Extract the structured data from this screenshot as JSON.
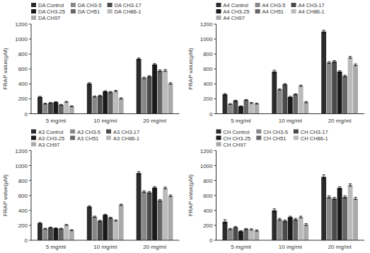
{
  "chart_data": [
    {
      "type": "bar",
      "ylabel": "FRAP value(μM)",
      "categories": [
        "5 mg/ml",
        "10 mg/ml",
        "20 mg/ml"
      ],
      "ylim": [
        0,
        1200
      ],
      "yticks": [
        0,
        200,
        400,
        600,
        800,
        1000,
        1200
      ],
      "grid": false,
      "legend": "upper left",
      "series": [
        {
          "name": "DA Control",
          "color": "#2b2b2b",
          "values": [
            225,
            405,
            735
          ],
          "errors": [
            8,
            10,
            12
          ]
        },
        {
          "name": "DA CH3-5",
          "color": "#888888",
          "values": [
            135,
            230,
            480
          ],
          "errors": [
            6,
            8,
            10
          ]
        },
        {
          "name": "DA CH3-17",
          "color": "#4a4a4a",
          "values": [
            145,
            240,
            500
          ],
          "errors": [
            6,
            8,
            10
          ]
        },
        {
          "name": "DA CH3-25",
          "color": "#1a1a1a",
          "values": [
            155,
            300,
            660
          ],
          "errors": [
            6,
            8,
            12
          ]
        },
        {
          "name": "DA CH51",
          "color": "#666666",
          "values": [
            120,
            290,
            575
          ],
          "errors": [
            6,
            8,
            12
          ]
        },
        {
          "name": "DA CH86-1",
          "color": "#bbbbbb",
          "values": [
            160,
            305,
            580
          ],
          "errors": [
            6,
            8,
            12
          ]
        },
        {
          "name": "DA CH97",
          "color": "#aaaaaa",
          "values": [
            100,
            205,
            405
          ],
          "errors": [
            6,
            8,
            10
          ]
        }
      ]
    },
    {
      "type": "bar",
      "ylabel": "FRAP value(μM)",
      "categories": [
        "5 mg/ml",
        "10 mg/ml",
        "20 mg/ml"
      ],
      "ylim": [
        0,
        1200
      ],
      "yticks": [
        0,
        200,
        400,
        600,
        800,
        1000,
        1200
      ],
      "grid": false,
      "legend": "upper left",
      "series": [
        {
          "name": "A4 Control",
          "color": "#2b2b2b",
          "values": [
            260,
            565,
            1100
          ],
          "errors": [
            10,
            18,
            18
          ]
        },
        {
          "name": "A4 CH3-5",
          "color": "#888888",
          "values": [
            130,
            325,
            685
          ],
          "errors": [
            6,
            8,
            12
          ]
        },
        {
          "name": "A4 CH3-17",
          "color": "#4a4a4a",
          "values": [
            175,
            395,
            700
          ],
          "errors": [
            6,
            8,
            12
          ]
        },
        {
          "name": "A4 CH3-25",
          "color": "#1a1a1a",
          "values": [
            100,
            225,
            565
          ],
          "errors": [
            6,
            8,
            12
          ]
        },
        {
          "name": "A4 CH51",
          "color": "#666666",
          "values": [
            185,
            260,
            505
          ],
          "errors": [
            6,
            8,
            12
          ]
        },
        {
          "name": "A4 CH86-1",
          "color": "#bbbbbb",
          "values": [
            145,
            375,
            755
          ],
          "errors": [
            6,
            8,
            12
          ]
        },
        {
          "name": "A4 CH97",
          "color": "#aaaaaa",
          "values": [
            135,
            155,
            655
          ],
          "errors": [
            6,
            8,
            12
          ]
        }
      ]
    },
    {
      "type": "bar",
      "ylabel": "FRAP value(μM)",
      "categories": [
        "5 mg/ml",
        "10 mg/ml",
        "20 mg/ml"
      ],
      "ylim": [
        0,
        1200
      ],
      "yticks": [
        0,
        200,
        400,
        600,
        800,
        1000,
        1200
      ],
      "grid": false,
      "legend": "upper left",
      "series": [
        {
          "name": "A3 Control",
          "color": "#2b2b2b",
          "values": [
            230,
            450,
            900
          ],
          "errors": [
            8,
            10,
            18
          ]
        },
        {
          "name": "A3 CH3-5",
          "color": "#888888",
          "values": [
            155,
            315,
            650
          ],
          "errors": [
            6,
            8,
            12
          ]
        },
        {
          "name": "A3 CH3-17",
          "color": "#4a4a4a",
          "values": [
            170,
            260,
            640
          ],
          "errors": [
            6,
            8,
            12
          ]
        },
        {
          "name": "A3 CH3-25",
          "color": "#1a1a1a",
          "values": [
            160,
            340,
            705
          ],
          "errors": [
            6,
            8,
            12
          ]
        },
        {
          "name": "A3 CH51",
          "color": "#666666",
          "values": [
            155,
            300,
            535
          ],
          "errors": [
            6,
            8,
            12
          ]
        },
        {
          "name": "A3 CH86-1",
          "color": "#bbbbbb",
          "values": [
            205,
            265,
            700
          ],
          "errors": [
            6,
            8,
            12
          ]
        },
        {
          "name": "A3 CH97",
          "color": "#aaaaaa",
          "values": [
            135,
            475,
            595
          ],
          "errors": [
            6,
            8,
            12
          ]
        }
      ]
    },
    {
      "type": "bar",
      "ylabel": "FRAP value(μM)",
      "categories": [
        "5 mg/ml",
        "10 mg/ml",
        "20 mg/ml"
      ],
      "ylim": [
        0,
        1200
      ],
      "yticks": [
        0,
        200,
        400,
        600,
        800,
        1000,
        1200
      ],
      "grid": false,
      "legend": "upper left",
      "series": [
        {
          "name": "CH Control",
          "color": "#2b2b2b",
          "values": [
            250,
            400,
            850
          ],
          "errors": [
            25,
            20,
            25
          ]
        },
        {
          "name": "CH CH3-5",
          "color": "#888888",
          "values": [
            150,
            280,
            580
          ],
          "errors": [
            8,
            12,
            15
          ]
        },
        {
          "name": "CH CH3-17",
          "color": "#4a4a4a",
          "values": [
            175,
            260,
            560
          ],
          "errors": [
            8,
            12,
            15
          ]
        },
        {
          "name": "CH CH3-25",
          "color": "#1a1a1a",
          "values": [
            120,
            310,
            700
          ],
          "errors": [
            8,
            12,
            15
          ]
        },
        {
          "name": "CH CH51",
          "color": "#666666",
          "values": [
            150,
            280,
            580
          ],
          "errors": [
            8,
            12,
            15
          ]
        },
        {
          "name": "CH CH86-1",
          "color": "#bbbbbb",
          "values": [
            145,
            310,
            740
          ],
          "errors": [
            8,
            12,
            15
          ]
        },
        {
          "name": "CH CH97",
          "color": "#aaaaaa",
          "values": [
            130,
            210,
            560
          ],
          "errors": [
            8,
            12,
            15
          ]
        }
      ]
    }
  ]
}
